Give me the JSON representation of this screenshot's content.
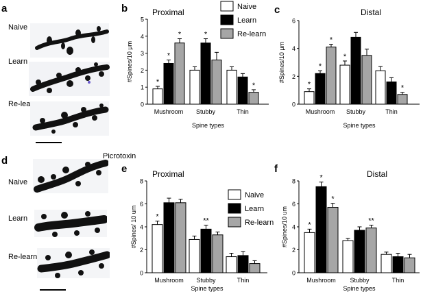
{
  "panel_labels": [
    "a",
    "b",
    "c",
    "d",
    "e",
    "f"
  ],
  "micrograph_labels_top": [
    "Naive",
    "Learn",
    "Re-learn"
  ],
  "micrograph_labels_bottom": [
    "Naive",
    "Learn",
    "Re-learn"
  ],
  "section_title": "Picrotoxin",
  "colors": {
    "naive": "#ffffff",
    "learn": "#000000",
    "relearn": "#a6a6a6",
    "stroke": "#000000"
  },
  "chart_data": [
    {
      "type": "bar",
      "panel": "b",
      "title": "Proximal",
      "xlabel": "Spine types",
      "ylabel": "#Spines/10 μm",
      "categories": [
        "Mushroom",
        "Stubby",
        "Thin"
      ],
      "ylim": [
        0,
        5
      ],
      "yticks": [
        0,
        1,
        2,
        3,
        4,
        5
      ],
      "series": [
        {
          "name": "Naive",
          "values": [
            0.9,
            2.0,
            2.0
          ],
          "errors": [
            0.15,
            0.2,
            0.2
          ]
        },
        {
          "name": "Learn",
          "values": [
            2.4,
            3.6,
            1.6
          ],
          "errors": [
            0.2,
            0.25,
            0.2
          ]
        },
        {
          "name": "Re-learn",
          "values": [
            3.6,
            2.6,
            0.7
          ],
          "errors": [
            0.25,
            0.45,
            0.15
          ]
        }
      ],
      "annotations": [
        [
          "*",
          "",
          ""
        ],
        [
          "*",
          "*",
          ""
        ],
        [
          "*",
          "",
          "*"
        ]
      ],
      "legend": "top-right"
    },
    {
      "type": "bar",
      "panel": "c",
      "title": "Distal",
      "xlabel": "Spine types",
      "ylabel": "#Spines/10 μm",
      "categories": [
        "Mushroom",
        "Stubby",
        "Thin"
      ],
      "ylim": [
        0,
        6
      ],
      "yticks": [
        0,
        2,
        4,
        6
      ],
      "series": [
        {
          "name": "Naive",
          "values": [
            0.9,
            2.8,
            2.4
          ],
          "errors": [
            0.2,
            0.3,
            0.3
          ]
        },
        {
          "name": "Learn",
          "values": [
            2.2,
            4.8,
            1.6
          ],
          "errors": [
            0.2,
            0.35,
            0.3
          ]
        },
        {
          "name": "Re-learn",
          "values": [
            4.1,
            3.5,
            0.7
          ],
          "errors": [
            0.2,
            0.45,
            0.15
          ]
        }
      ],
      "annotations": [
        [
          "*",
          "*",
          ""
        ],
        [
          "*",
          "",
          ""
        ],
        [
          "*",
          "",
          "*"
        ]
      ],
      "legend": "none"
    },
    {
      "type": "bar",
      "panel": "e",
      "title": "Proximal",
      "xlabel": "Spine types",
      "ylabel": "#Spines/ 10 um",
      "categories": [
        "Mushroom",
        "Stubby",
        "Thin"
      ],
      "ylim": [
        0,
        8
      ],
      "yticks": [
        0,
        2,
        4,
        6,
        8
      ],
      "series": [
        {
          "name": "Naive",
          "values": [
            4.2,
            2.9,
            1.4
          ],
          "errors": [
            0.3,
            0.3,
            0.3
          ]
        },
        {
          "name": "Learn",
          "values": [
            6.1,
            3.8,
            1.5
          ],
          "errors": [
            0.4,
            0.35,
            0.35
          ]
        },
        {
          "name": "Re-learn",
          "values": [
            6.1,
            3.3,
            0.8
          ],
          "errors": [
            0.3,
            0.25,
            0.25
          ]
        }
      ],
      "annotations": [
        [
          "*",
          "",
          ""
        ],
        [
          "",
          "**",
          ""
        ],
        [
          "",
          "",
          ""
        ]
      ],
      "legend": "right"
    },
    {
      "type": "bar",
      "panel": "f",
      "title": "Distal",
      "xlabel": "Spine types",
      "ylabel": "#Spines/10 um",
      "categories": [
        "Mushroom",
        "Stubby",
        "Thin"
      ],
      "ylim": [
        0,
        8
      ],
      "yticks": [
        0,
        2,
        4,
        6,
        8
      ],
      "series": [
        {
          "name": "Naive",
          "values": [
            3.5,
            2.8,
            1.6
          ],
          "errors": [
            0.3,
            0.2,
            0.2
          ]
        },
        {
          "name": "Learn",
          "values": [
            7.5,
            3.7,
            1.4
          ],
          "errors": [
            0.4,
            0.3,
            0.3
          ]
        },
        {
          "name": "Re-learn",
          "values": [
            5.7,
            3.9,
            1.3
          ],
          "errors": [
            0.35,
            0.25,
            0.3
          ]
        }
      ],
      "annotations": [
        [
          "*",
          "",
          ""
        ],
        [
          "*",
          "",
          ""
        ],
        [
          "*",
          "**",
          ""
        ]
      ],
      "legend": "none"
    }
  ]
}
